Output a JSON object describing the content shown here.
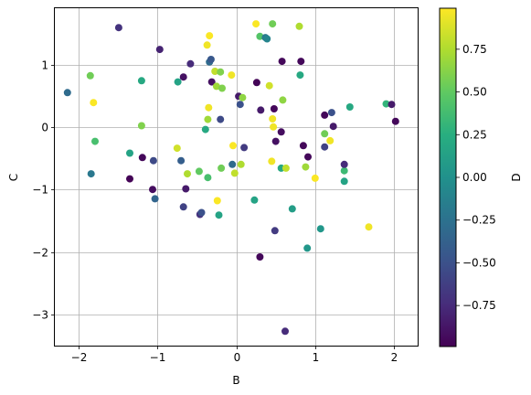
{
  "chart_data": {
    "type": "scatter",
    "xlabel": "B",
    "ylabel": "C",
    "colorbar_label": "D",
    "xlim": [
      -2.3,
      2.3
    ],
    "ylim": [
      -3.5,
      1.9
    ],
    "xticks": [
      -2,
      -1,
      0,
      1,
      2
    ],
    "xtick_labels": [
      "−2",
      "−1",
      "0",
      "1",
      "2"
    ],
    "yticks": [
      -3,
      -2,
      -1,
      0,
      1
    ],
    "ytick_labels": [
      "−3",
      "−2",
      "−1",
      "0",
      "1"
    ],
    "grid": true,
    "colormap": "viridis",
    "clim": [
      -0.99,
      0.99
    ],
    "cbar_ticks": [
      -0.75,
      -0.5,
      -0.25,
      0.0,
      0.25,
      0.5,
      0.75
    ],
    "cbar_tick_labels": [
      "−0.75",
      "−0.50",
      "−0.25",
      "0.00",
      "0.25",
      "0.50",
      "0.75"
    ],
    "points": [
      {
        "x": -2.14,
        "y": 0.55,
        "d": -0.3
      },
      {
        "x": -1.85,
        "y": 0.82,
        "d": 0.55
      },
      {
        "x": -1.84,
        "y": -0.75,
        "d": -0.2
      },
      {
        "x": -1.81,
        "y": 0.39,
        "d": 0.98
      },
      {
        "x": -1.79,
        "y": -0.23,
        "d": 0.4
      },
      {
        "x": -1.49,
        "y": 1.59,
        "d": -0.7
      },
      {
        "x": -1.35,
        "y": -0.42,
        "d": 0.15
      },
      {
        "x": -1.35,
        "y": -0.83,
        "d": -0.98
      },
      {
        "x": -1.2,
        "y": 0.74,
        "d": 0.2
      },
      {
        "x": -1.2,
        "y": 0.02,
        "d": 0.6
      },
      {
        "x": -1.19,
        "y": -0.49,
        "d": -0.95
      },
      {
        "x": -1.06,
        "y": -1.0,
        "d": -0.92
      },
      {
        "x": -1.05,
        "y": -0.54,
        "d": -0.55
      },
      {
        "x": -1.03,
        "y": -1.15,
        "d": -0.35
      },
      {
        "x": -0.97,
        "y": 1.24,
        "d": -0.8
      },
      {
        "x": -0.75,
        "y": -0.34,
        "d": 0.85
      },
      {
        "x": -0.74,
        "y": 0.72,
        "d": 0.15
      },
      {
        "x": -0.7,
        "y": -0.54,
        "d": -0.4
      },
      {
        "x": -0.67,
        "y": 0.8,
        "d": -0.9
      },
      {
        "x": -0.67,
        "y": -1.28,
        "d": -0.6
      },
      {
        "x": -0.64,
        "y": -0.99,
        "d": -0.85
      },
      {
        "x": -0.62,
        "y": -0.75,
        "d": 0.75
      },
      {
        "x": -0.58,
        "y": 1.01,
        "d": -0.75
      },
      {
        "x": -0.47,
        "y": -0.71,
        "d": 0.5
      },
      {
        "x": -0.46,
        "y": -1.4,
        "d": -0.7
      },
      {
        "x": -0.44,
        "y": -1.37,
        "d": -0.5
      },
      {
        "x": -0.39,
        "y": -0.04,
        "d": 0.2
      },
      {
        "x": -0.37,
        "y": 1.31,
        "d": 0.95
      },
      {
        "x": -0.36,
        "y": 0.12,
        "d": 0.7
      },
      {
        "x": -0.36,
        "y": -0.81,
        "d": 0.4
      },
      {
        "x": -0.35,
        "y": 0.31,
        "d": 0.95
      },
      {
        "x": -0.34,
        "y": 1.46,
        "d": 0.98
      },
      {
        "x": -0.34,
        "y": 1.04,
        "d": -0.3
      },
      {
        "x": -0.32,
        "y": 1.08,
        "d": -0.45
      },
      {
        "x": -0.31,
        "y": 0.72,
        "d": -0.9
      },
      {
        "x": -0.27,
        "y": 0.89,
        "d": 0.8
      },
      {
        "x": -0.25,
        "y": 0.65,
        "d": 0.7
      },
      {
        "x": -0.24,
        "y": -1.18,
        "d": 0.98
      },
      {
        "x": -0.22,
        "y": -1.41,
        "d": 0.15
      },
      {
        "x": -0.2,
        "y": 0.88,
        "d": 0.6
      },
      {
        "x": -0.2,
        "y": 0.12,
        "d": -0.55
      },
      {
        "x": -0.19,
        "y": -0.66,
        "d": 0.55
      },
      {
        "x": -0.18,
        "y": 0.62,
        "d": 0.6
      },
      {
        "x": -0.06,
        "y": 0.83,
        "d": 0.95
      },
      {
        "x": -0.05,
        "y": -0.6,
        "d": -0.3
      },
      {
        "x": -0.04,
        "y": -0.3,
        "d": 0.98
      },
      {
        "x": -0.02,
        "y": -0.74,
        "d": 0.8
      },
      {
        "x": 0.03,
        "y": 0.49,
        "d": -0.85
      },
      {
        "x": 0.05,
        "y": 0.36,
        "d": -0.5
      },
      {
        "x": 0.06,
        "y": -0.6,
        "d": 0.75
      },
      {
        "x": 0.08,
        "y": 0.47,
        "d": 0.65
      },
      {
        "x": 0.1,
        "y": -0.33,
        "d": -0.65
      },
      {
        "x": 0.23,
        "y": -1.17,
        "d": 0.15
      },
      {
        "x": 0.25,
        "y": 1.65,
        "d": 0.98
      },
      {
        "x": 0.26,
        "y": 0.71,
        "d": -0.97
      },
      {
        "x": 0.3,
        "y": -2.08,
        "d": -0.95
      },
      {
        "x": 0.3,
        "y": 1.45,
        "d": 0.45
      },
      {
        "x": 0.31,
        "y": 0.27,
        "d": -0.85
      },
      {
        "x": 0.37,
        "y": 1.43,
        "d": -0.2
      },
      {
        "x": 0.39,
        "y": 1.41,
        "d": -0.1
      },
      {
        "x": 0.42,
        "y": 0.66,
        "d": 0.85
      },
      {
        "x": 0.45,
        "y": -0.55,
        "d": 0.95
      },
      {
        "x": 0.46,
        "y": 0.13,
        "d": 0.95
      },
      {
        "x": 0.46,
        "y": 1.65,
        "d": 0.55
      },
      {
        "x": 0.47,
        "y": 0.0,
        "d": 0.95
      },
      {
        "x": 0.48,
        "y": 0.29,
        "d": -0.95
      },
      {
        "x": 0.49,
        "y": -1.66,
        "d": -0.65
      },
      {
        "x": 0.5,
        "y": -0.23,
        "d": -0.9
      },
      {
        "x": 0.57,
        "y": -0.08,
        "d": -0.92
      },
      {
        "x": 0.57,
        "y": -0.66,
        "d": 0.2
      },
      {
        "x": 0.58,
        "y": 1.05,
        "d": -0.95
      },
      {
        "x": 0.59,
        "y": 0.43,
        "d": 0.65
      },
      {
        "x": 0.62,
        "y": -3.27,
        "d": -0.75
      },
      {
        "x": 0.63,
        "y": -0.66,
        "d": 0.8
      },
      {
        "x": 0.71,
        "y": -1.31,
        "d": 0.1
      },
      {
        "x": 0.8,
        "y": 1.61,
        "d": 0.75
      },
      {
        "x": 0.81,
        "y": 0.83,
        "d": 0.2
      },
      {
        "x": 0.82,
        "y": 1.05,
        "d": -0.95
      },
      {
        "x": 0.85,
        "y": -0.3,
        "d": -0.95
      },
      {
        "x": 0.88,
        "y": -0.64,
        "d": 0.7
      },
      {
        "x": 0.9,
        "y": -1.94,
        "d": 0.05
      },
      {
        "x": 0.91,
        "y": -0.48,
        "d": -0.95
      },
      {
        "x": 1.0,
        "y": -0.82,
        "d": 0.98
      },
      {
        "x": 1.07,
        "y": -1.63,
        "d": 0.05
      },
      {
        "x": 1.12,
        "y": 0.19,
        "d": -0.95
      },
      {
        "x": 1.12,
        "y": -0.32,
        "d": -0.6
      },
      {
        "x": 1.12,
        "y": -0.11,
        "d": 0.55
      },
      {
        "x": 1.19,
        "y": -0.22,
        "d": 0.95
      },
      {
        "x": 1.21,
        "y": 0.23,
        "d": -0.5
      },
      {
        "x": 1.23,
        "y": 0.01,
        "d": -0.85
      },
      {
        "x": 1.37,
        "y": -0.7,
        "d": 0.35
      },
      {
        "x": 1.37,
        "y": -0.87,
        "d": 0.15
      },
      {
        "x": 1.37,
        "y": -0.6,
        "d": -0.75
      },
      {
        "x": 1.44,
        "y": 0.32,
        "d": 0.2
      },
      {
        "x": 1.68,
        "y": -1.6,
        "d": 0.95
      },
      {
        "x": 1.9,
        "y": 0.37,
        "d": 0.3
      },
      {
        "x": 1.97,
        "y": 0.36,
        "d": -0.85
      },
      {
        "x": 2.02,
        "y": 0.09,
        "d": -0.95
      }
    ]
  }
}
